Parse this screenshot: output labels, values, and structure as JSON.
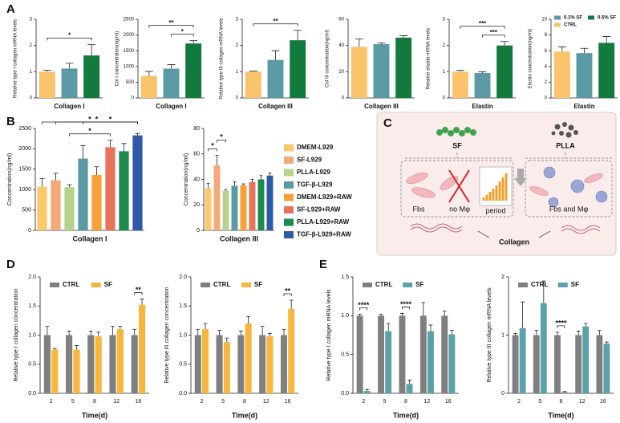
{
  "panels": [
    "A",
    "B",
    "C",
    "D",
    "E"
  ],
  "diagram": {
    "labels": [
      "SF",
      "PLLA",
      "Fbs",
      "no Mφ",
      "period",
      "Fbs and Mφ",
      "Collagen"
    ]
  },
  "chart_data": [
    {
      "type": "bar",
      "y_label": "Relative type I collagen mRNA levels",
      "x_label": "Collagen I",
      "values": [
        1.0,
        1.12,
        1.62
      ],
      "errors": [
        0.06,
        0.2,
        0.42
      ],
      "colors": [
        "#f9c46b",
        "#5b9aa4",
        "#137a3e"
      ],
      "ylim": [
        0,
        3
      ],
      "yticks": [
        0,
        1,
        2,
        3
      ],
      "annotations": [
        {
          "text": "*",
          "bars": [
            0,
            2
          ]
        }
      ]
    },
    {
      "type": "bar",
      "y_label": "Col I concentration(ng/ml)",
      "x_label": "Collagen I",
      "values": [
        700,
        930,
        1730
      ],
      "errors": [
        140,
        130,
        90
      ],
      "colors": [
        "#f9c46b",
        "#5b9aa4",
        "#137a3e"
      ],
      "ylim": [
        0,
        2500
      ],
      "yticks": [
        0,
        500,
        1000,
        1500,
        2000,
        2500
      ],
      "annotations": [
        {
          "text": "*",
          "bars": [
            1,
            2
          ]
        },
        {
          "text": "**",
          "bars": [
            0,
            2
          ]
        }
      ]
    },
    {
      "type": "bar",
      "y_label": "Relative type III collagen mRNA levels",
      "x_label": "Collagen III",
      "values": [
        1.0,
        1.45,
        2.2
      ],
      "errors": [
        0.02,
        0.35,
        0.38
      ],
      "colors": [
        "#f9c46b",
        "#5b9aa4",
        "#137a3e"
      ],
      "ylim": [
        0,
        3
      ],
      "yticks": [
        0,
        1,
        2,
        3
      ],
      "annotations": [
        {
          "text": "**",
          "bars": [
            0,
            2
          ]
        }
      ]
    },
    {
      "type": "bar",
      "y_label": "Col III concentration(ng/ml)",
      "x_label": "Collagen III",
      "values": [
        39,
        41,
        46
      ],
      "errors": [
        6,
        1,
        1.5
      ],
      "colors": [
        "#f9c46b",
        "#5b9aa4",
        "#137a3e"
      ],
      "ylim": [
        0,
        60
      ],
      "yticks": [
        0,
        20,
        40,
        60
      ]
    },
    {
      "type": "bar",
      "y_label": "Relative elastin mRNA levels",
      "x_label": "Elastin",
      "values": [
        1.0,
        0.95,
        2.0
      ],
      "errors": [
        0.05,
        0.05,
        0.15
      ],
      "colors": [
        "#f9c46b",
        "#5b9aa4",
        "#137a3e"
      ],
      "ylim": [
        0,
        3
      ],
      "yticks": [
        0,
        1,
        2,
        3
      ],
      "annotations": [
        {
          "text": "***",
          "bars": [
            1,
            2
          ]
        },
        {
          "text": "***",
          "bars": [
            0,
            2
          ]
        }
      ]
    },
    {
      "type": "bar",
      "y_label": "Elastin concentration(ng/ml)",
      "x_label": "Elastin",
      "values": [
        5.9,
        5.7,
        7.0
      ],
      "errors": [
        0.6,
        0.6,
        0.8
      ],
      "colors": [
        "#f9c46b",
        "#5b9aa4",
        "#137a3e"
      ],
      "ylim": [
        0,
        10
      ],
      "yticks": [
        0,
        2,
        4,
        6,
        8,
        10
      ],
      "legend": [
        {
          "name": "0.1% SF",
          "color": "#5b9aa4"
        },
        {
          "name": "0.5% SF",
          "color": "#137a3e"
        },
        {
          "name": "CTRL",
          "color": "#f9c46b"
        }
      ]
    },
    {
      "type": "bar",
      "y_label": "Concentration(ng/ml)",
      "x_label": "Collagen I",
      "values": [
        1070,
        1230,
        1060,
        1760,
        1360,
        2040,
        1940,
        2330
      ],
      "errors": [
        200,
        170,
        60,
        320,
        200,
        170,
        190,
        50
      ],
      "colors": [
        "#f9c96b",
        "#f4a97a",
        "#b5d38f",
        "#5a9aa3",
        "#f5a23a",
        "#e9735a",
        "#1b8b4b",
        "#2d59a6"
      ],
      "ylim": [
        0,
        2500
      ],
      "yticks": [
        0,
        500,
        1000,
        1500,
        2000,
        2500
      ],
      "annotations": [
        {
          "text": "*",
          "bars": [
            2,
            5
          ]
        },
        {
          "text": "*",
          "bars": [
            3,
            7
          ]
        },
        {
          "text": "*",
          "bars": [
            1,
            7
          ]
        },
        {
          "text": "*",
          "bars": [
            0,
            7
          ]
        }
      ]
    },
    {
      "type": "bar",
      "y_label": "Concentration(ng/ml)",
      "x_label": "Collagen III",
      "values": [
        33,
        51,
        31,
        35,
        35.5,
        38,
        40,
        43
      ],
      "errors": [
        4,
        8,
        1,
        3,
        1,
        2,
        3,
        2
      ],
      "colors": [
        "#f9c96b",
        "#f4a97a",
        "#b5d38f",
        "#5a9aa3",
        "#f5a23a",
        "#e9735a",
        "#1b8b4b",
        "#2d59a6"
      ],
      "ylim": [
        0,
        80
      ],
      "yticks": [
        0,
        20,
        40,
        60,
        80
      ],
      "annotations": [
        {
          "text": "*",
          "bars": [
            0,
            1
          ]
        },
        {
          "text": "*",
          "bars": [
            1,
            2
          ]
        }
      ],
      "legend": [
        {
          "name": "DMEM-L929",
          "color": "#f9c96b"
        },
        {
          "name": "SF-L929",
          "color": "#f4a97a"
        },
        {
          "name": "PLLA-L929",
          "color": "#b5d38f"
        },
        {
          "name": "TGF-β-L929",
          "color": "#5a9aa3"
        },
        {
          "name": "DMEM-L929+RAW",
          "color": "#f5a23a"
        },
        {
          "name": "SF-L929+RAW",
          "color": "#e9735a"
        },
        {
          "name": "PLLA-L929+RAW",
          "color": "#1b8b4b"
        },
        {
          "name": "TGF-β-L929+RAW",
          "color": "#2d59a6"
        }
      ]
    },
    {
      "type": "grouped_bar",
      "y_label": "Relative type I collagen concentration",
      "x_label": "Time(d)",
      "categories": [
        "2",
        "5",
        "8",
        "12",
        "16"
      ],
      "series": [
        {
          "name": "CTRL",
          "color": "#7f7f7f",
          "values": [
            1,
            1,
            1,
            1,
            1
          ],
          "errors": [
            0.15,
            0.07,
            0.07,
            0.15,
            0.1
          ]
        },
        {
          "name": "SF",
          "color": "#f6b73c",
          "values": [
            0.75,
            0.75,
            0.98,
            1.1,
            1.52
          ],
          "errors": [
            0.02,
            0.07,
            0.07,
            0.05,
            0.1
          ]
        }
      ],
      "ylim": [
        0,
        2
      ],
      "yticks": [
        {
          "value": 0,
          "label": "0.0"
        },
        0.5,
        {
          "value": 1,
          "label": "1.0"
        },
        1.5,
        {
          "value": 2,
          "label": "2.0"
        }
      ],
      "annotations": [
        {
          "text": "**",
          "category": 4
        }
      ]
    },
    {
      "type": "grouped_bar",
      "y_label": "Relative type III collagen concentration",
      "x_label": "Time(d)",
      "categories": [
        "2",
        "5",
        "8",
        "12",
        "16"
      ],
      "series": [
        {
          "name": "CTRL",
          "color": "#7f7f7f",
          "values": [
            1,
            1,
            1,
            1,
            1
          ],
          "errors": [
            0.1,
            0.08,
            0.07,
            0.15,
            0.1
          ]
        },
        {
          "name": "SF",
          "color": "#f6b73c",
          "values": [
            1.1,
            0.88,
            1.2,
            0.98,
            1.45
          ],
          "errors": [
            0.1,
            0.07,
            0.12,
            0.05,
            0.15
          ]
        }
      ],
      "ylim": [
        0,
        2
      ],
      "yticks": [
        {
          "value": 0,
          "label": "0.0"
        },
        0.5,
        {
          "value": 1,
          "label": "1.0"
        },
        1.5,
        {
          "value": 2,
          "label": "2.0"
        }
      ],
      "annotations": [
        {
          "text": "**",
          "category": 4
        }
      ]
    },
    {
      "type": "grouped_bar",
      "y_label": "Relative type I collagen mRNA levels",
      "x_label": "Time(d)",
      "categories": [
        "2",
        "5",
        "8",
        "12",
        "16"
      ],
      "series": [
        {
          "name": "CTRL",
          "color": "#7f7f7f",
          "values": [
            1,
            1,
            1,
            1,
            1
          ],
          "errors": [
            0.02,
            0.02,
            0.03,
            0.17,
            0.06
          ]
        },
        {
          "name": "SF",
          "color": "#5aa1a8",
          "values": [
            0.03,
            0.8,
            0.12,
            0.8,
            0.76
          ],
          "errors": [
            0.02,
            0.1,
            0.05,
            0.08,
            0.05
          ]
        }
      ],
      "ylim": [
        0,
        1.5
      ],
      "yticks": [
        {
          "value": 0,
          "label": "0.0"
        },
        0.5,
        {
          "value": 1,
          "label": "1.0"
        },
        1.5
      ],
      "annotations": [
        {
          "text": "****",
          "category": 0
        },
        {
          "text": "****",
          "category": 2
        }
      ]
    },
    {
      "type": "grouped_bar",
      "y_label": "Relative type III collagen mRNA levels",
      "x_label": "Time(d)",
      "categories": [
        "2",
        "5",
        "8",
        "12",
        "16"
      ],
      "series": [
        {
          "name": "CTRL",
          "color": "#7f7f7f",
          "values": [
            1,
            1,
            1,
            1,
            1
          ],
          "errors": [
            0.03,
            0.08,
            0.05,
            0.07,
            0.08
          ]
        },
        {
          "name": "SF",
          "color": "#5aa1a8",
          "values": [
            1.12,
            1.55,
            0.02,
            1.15,
            0.85
          ],
          "errors": [
            0.45,
            0.38,
            0.01,
            0.05,
            0.03
          ]
        }
      ],
      "ylim": [
        0,
        2
      ],
      "yticks": [
        0,
        1,
        2
      ],
      "annotations": [
        {
          "text": "****",
          "category": 2
        }
      ]
    }
  ]
}
